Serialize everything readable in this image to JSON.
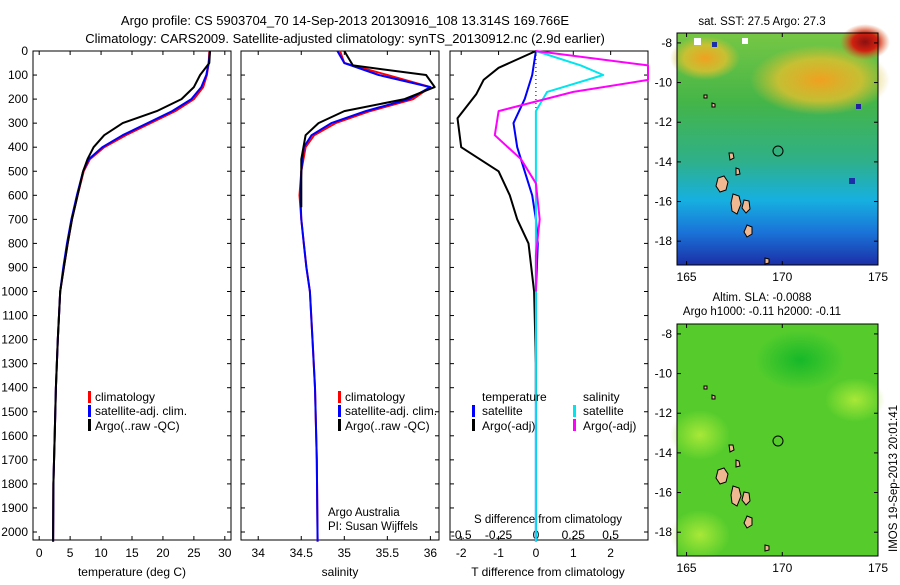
{
  "header": {
    "title_line1": "Argo profile: CS 5903704_70 14-Sep-2013 20130916_108 13.314S 169.766E",
    "title_line2": "Climatology: CARS2009. Satellite-adjusted climatology: synTS_20130912.nc (2.9d earlier)"
  },
  "colors": {
    "climatology": "#ff0000",
    "satellite": "#0000ff",
    "argo": "#000000",
    "salinity_satellite": "#00e5ee",
    "salinity_argo": "#ff00ff"
  },
  "chart_data": [
    {
      "id": "temperature",
      "type": "line",
      "xlabel": "temperature (deg C)",
      "ylabel": "",
      "xlim": [
        -1,
        31
      ],
      "ylim": [
        2060,
        0
      ],
      "xticks": [
        0,
        5,
        10,
        15,
        20,
        25,
        30
      ],
      "yticks": [
        0,
        100,
        200,
        300,
        400,
        500,
        600,
        700,
        800,
        900,
        1000,
        1100,
        1200,
        1300,
        1400,
        1500,
        1600,
        1700,
        1800,
        1900,
        2000
      ],
      "legend": [
        "climatology",
        "satellite-adj. clim.",
        "Argo(..raw -QC)"
      ],
      "legend_placement": "lower-center",
      "series": [
        {
          "name": "climatology",
          "x": [
            27.5,
            27.4,
            27.1,
            26.5,
            25.0,
            22.0,
            18.0,
            14.0,
            10.5,
            8.2,
            7.2,
            6.2,
            5.3,
            4.6,
            4.0,
            3.4,
            3.0,
            2.7,
            2.5,
            2.3,
            2.25
          ],
          "y": [
            0,
            50,
            100,
            150,
            200,
            250,
            300,
            350,
            400,
            450,
            500,
            600,
            700,
            800,
            900,
            1000,
            1200,
            1400,
            1600,
            1800,
            2040
          ]
        },
        {
          "name": "satellite-adj. clim.",
          "x": [
            27.6,
            27.4,
            27.0,
            26.2,
            24.6,
            21.5,
            17.5,
            13.5,
            10.2,
            8.0,
            7.1,
            6.1,
            5.2,
            4.5,
            3.9,
            3.4,
            3.0,
            2.7,
            2.5,
            2.3,
            2.25
          ],
          "y": [
            0,
            50,
            100,
            150,
            200,
            250,
            300,
            350,
            400,
            450,
            500,
            600,
            700,
            800,
            900,
            1000,
            1200,
            1400,
            1600,
            1800,
            2040
          ]
        },
        {
          "name": "Argo(..raw -QC)",
          "x": [
            27.6,
            27.5,
            26.0,
            25.0,
            23.0,
            19.0,
            13.5,
            10.5,
            8.8,
            7.8,
            7.1,
            6.2,
            5.3,
            4.6,
            4.0,
            3.4,
            3.0,
            2.7,
            2.5,
            2.3,
            2.25
          ],
          "y": [
            0,
            50,
            100,
            150,
            200,
            250,
            300,
            350,
            400,
            450,
            500,
            600,
            700,
            800,
            900,
            1000,
            1200,
            1400,
            1600,
            1800,
            2040
          ]
        }
      ]
    },
    {
      "id": "salinity",
      "type": "line",
      "xlabel": "salinity",
      "ylabel": "",
      "xlim": [
        33.8,
        36.1
      ],
      "ylim": [
        2060,
        0
      ],
      "xticks": [
        34,
        34.5,
        35,
        35.5,
        36
      ],
      "legend": [
        "climatology",
        "satellite-adj. clim.",
        "Argo(..raw -QC)"
      ],
      "legend_placement": "lower-center",
      "annotation": [
        "Argo Australia",
        "PI: Susan Wijffels"
      ],
      "series": [
        {
          "name": "climatology",
          "x": [
            34.95,
            35.0,
            35.5,
            36.0,
            35.8,
            35.3,
            34.9,
            34.65,
            34.55,
            34.5,
            34.48,
            34.5,
            34.53,
            34.56,
            34.6,
            34.63,
            34.66,
            34.68,
            34.69
          ],
          "y": [
            0,
            50,
            100,
            150,
            200,
            250,
            300,
            350,
            400,
            500,
            600,
            700,
            800,
            900,
            1000,
            1200,
            1400,
            1700,
            2040
          ]
        },
        {
          "name": "satellite-adj. clim.",
          "x": [
            34.92,
            35.0,
            35.4,
            36.0,
            35.75,
            35.25,
            34.85,
            34.62,
            34.53,
            34.5,
            34.49,
            34.5,
            34.53,
            34.56,
            34.6,
            34.63,
            34.66,
            34.68,
            34.69
          ],
          "y": [
            0,
            50,
            100,
            150,
            200,
            250,
            300,
            350,
            400,
            500,
            600,
            700,
            800,
            900,
            1000,
            1200,
            1400,
            1700,
            2040
          ]
        },
        {
          "name": "Argo(..raw -QC)",
          "x": [
            35.0,
            35.1,
            35.95,
            36.05,
            35.7,
            35.0,
            34.7,
            34.55,
            34.5,
            34.5,
            34.5
          ],
          "y": [
            0,
            60,
            100,
            150,
            200,
            250,
            300,
            350,
            450,
            550,
            650
          ]
        }
      ]
    },
    {
      "id": "difference",
      "type": "line",
      "xlabel": "T difference from climatology",
      "x2label": "S difference from climatology",
      "xlim": [
        -2.3,
        3.0
      ],
      "ylim": [
        2060,
        0
      ],
      "xticks": [
        -2,
        -1,
        0,
        1,
        2
      ],
      "x2ticks": [
        "-0.5",
        "-0.25",
        "0",
        "0.25",
        "0.5"
      ],
      "legend": [
        "temperature",
        "satellite",
        "Argo(-adj)",
        "salinity",
        "satellite",
        "Argo(-adj)"
      ],
      "legend_placement": "lower-center",
      "series": [
        {
          "name": "satellite",
          "group": "temperature",
          "x": [
            0,
            -0.1,
            -0.3,
            -0.6,
            -0.5,
            -0.3,
            -0.1,
            0,
            0.05,
            0,
            0,
            0,
            0
          ],
          "y": [
            0,
            100,
            200,
            300,
            400,
            500,
            600,
            700,
            800,
            1000,
            1200,
            1400,
            2040
          ]
        },
        {
          "name": "Argo(-adj)",
          "group": "temperature",
          "x": [
            0,
            -1.0,
            -1.4,
            -1.6,
            -2.1,
            -2.0,
            -1.0,
            -0.7,
            -0.5,
            -0.2,
            -0.05,
            0,
            0
          ],
          "y": [
            0,
            70,
            120,
            180,
            280,
            400,
            500,
            600,
            700,
            800,
            1000,
            1300,
            1450
          ]
        },
        {
          "name": "satellite",
          "group": "salinity",
          "x": [
            0,
            1.2,
            1.8,
            0.3,
            0,
            0,
            0,
            0,
            0
          ],
          "y": [
            0,
            60,
            100,
            170,
            250,
            400,
            800,
            1400,
            2040
          ]
        },
        {
          "name": "Argo(-adj)",
          "group": "salinity",
          "x": [
            0,
            3.0,
            3.0,
            1.0,
            -1.0,
            -1.1,
            -0.4,
            0,
            0.1,
            0,
            0
          ],
          "y": [
            0,
            60,
            120,
            170,
            250,
            350,
            450,
            550,
            700,
            850,
            1000
          ]
        }
      ]
    },
    {
      "id": "sst_map",
      "type": "heatmap",
      "title": "sat. SST: 27.5 Argo: 27.3",
      "xlim": [
        164.5,
        175
      ],
      "ylim": [
        -19.2,
        -7.5
      ],
      "xticks": [
        165,
        170,
        175
      ],
      "yticks": [
        -8,
        -10,
        -12,
        -14,
        -16,
        -18
      ],
      "marker": {
        "lon": 169.766,
        "lat": -13.314
      }
    },
    {
      "id": "sla_map",
      "type": "heatmap",
      "title": "Altim. SLA: -0.0088",
      "subtitle": "Argo h1000: -0.11 h2000: -0.11",
      "xlim": [
        164.5,
        175
      ],
      "ylim": [
        -19.2,
        -7.5
      ],
      "xticks": [
        165,
        170,
        175
      ],
      "yticks": [
        -8,
        -10,
        -12,
        -14,
        -16,
        -18
      ],
      "marker": {
        "lon": 169.766,
        "lat": -13.314
      }
    }
  ],
  "credit": "IMOS 19-Sep-2013 20:01:41"
}
